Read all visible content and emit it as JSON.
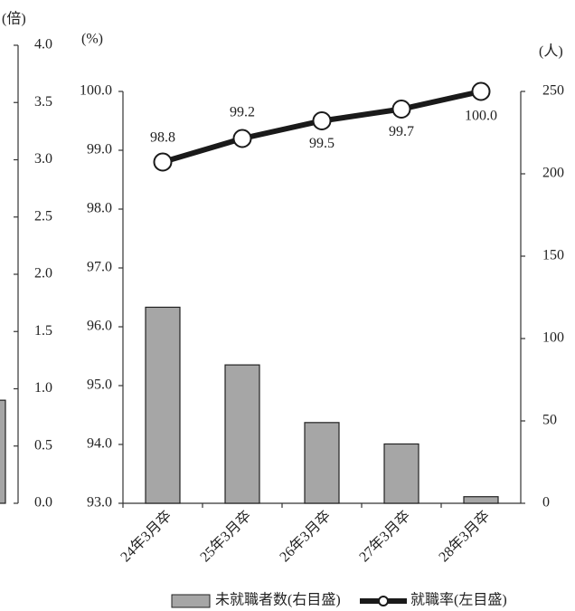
{
  "chart_data": [
    {
      "type": "bar",
      "y_label": "(倍)",
      "ylim": [
        0,
        4
      ],
      "yticks": [
        {
          "value": 0,
          "label": "0.0"
        },
        {
          "value": 0.5,
          "label": "0.5"
        },
        {
          "value": 1,
          "label": "1.0"
        },
        {
          "value": 1.5,
          "label": "1.5"
        },
        {
          "value": 2,
          "label": "2.0"
        },
        {
          "value": 2.5,
          "label": "2.5"
        },
        {
          "value": 3,
          "label": "3.0"
        },
        {
          "value": 3.5,
          "label": "3.5"
        },
        {
          "value": 4,
          "label": "4.0"
        }
      ],
      "categories": [
        null
      ],
      "values": [
        0.9
      ],
      "color": "#a6a6a6"
    },
    {
      "type": "combo",
      "y_label": "(%)",
      "y2_label": "(人)",
      "categories": [
        "24年3月卒",
        "25年3月卒",
        "26年3月卒",
        "27年3月卒",
        "28年3月卒"
      ],
      "ylim": [
        93,
        100
      ],
      "yticks": [
        {
          "value": 93,
          "label": "93.0"
        },
        {
          "value": 94,
          "label": "94.0"
        },
        {
          "value": 95,
          "label": "95.0"
        },
        {
          "value": 96,
          "label": "96.0"
        },
        {
          "value": 97,
          "label": "97.0"
        },
        {
          "value": 98,
          "label": "98.0"
        },
        {
          "value": 99,
          "label": "99.0"
        },
        {
          "value": 100,
          "label": "100.0"
        }
      ],
      "y2lim": [
        0,
        250
      ],
      "y2ticks": [
        0,
        50,
        100,
        150,
        200,
        250
      ],
      "series": [
        {
          "name": "未就職者数(右目盛)",
          "type": "bar",
          "axis": "y2",
          "color": "#a6a6a6",
          "values": [
            119,
            84,
            49,
            36,
            4
          ]
        },
        {
          "name": "就職率(左目盛)",
          "type": "line",
          "color": "#1a1a1a",
          "values": [
            98.8,
            99.2,
            99.5,
            99.7,
            100.0
          ],
          "value_labels": [
            "98.8",
            "99.2",
            "99.5",
            "99.7",
            "100.0"
          ]
        }
      ]
    }
  ]
}
